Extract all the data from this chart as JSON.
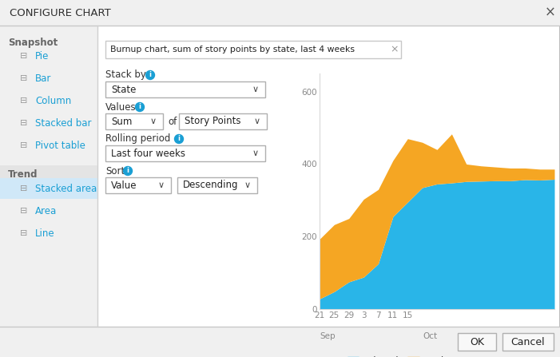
{
  "title": "CONFIGURE CHART",
  "bg_color": "#e8e8e8",
  "dialog_bg": "#ffffff",
  "sidebar_bg": "#f0f0f0",
  "sidebar_selected_bg": "#d0e8f8",
  "sidebar_items_snapshot": [
    "Pie",
    "Bar",
    "Column",
    "Stacked bar",
    "Pivot table"
  ],
  "sidebar_items_trend": [
    "Stacked area",
    "Area",
    "Line"
  ],
  "sidebar_selected": "Stacked area",
  "chart_title_text": "Burnup chart, sum of story points by state, last 4 weeks",
  "stack_by_value": "State",
  "values_agg": "Sum",
  "values_of": "of",
  "values_field": "Story Points",
  "rolling_period": "Last four weeks",
  "sort_by": "Value",
  "sort_order": "Descending",
  "blue_link_color": "#1a9fd4",
  "closed_color": "#29b5e8",
  "active_color": "#f5a623",
  "y_ticks": [
    0,
    200,
    400,
    600
  ],
  "x_labels": [
    "21",
    "25",
    "29",
    "3",
    "7",
    "11",
    "15"
  ],
  "closed_values": [
    28,
    48,
    75,
    88,
    125,
    255,
    295,
    335,
    345,
    348,
    352,
    353,
    354,
    354,
    357,
    356,
    358
  ],
  "active_values": [
    165,
    185,
    175,
    215,
    205,
    155,
    175,
    125,
    95,
    135,
    48,
    42,
    38,
    35,
    32,
    30,
    28
  ],
  "x_num": [
    0,
    4,
    8,
    12,
    16,
    20,
    24,
    28,
    32,
    36,
    40,
    44,
    48,
    52,
    56,
    60,
    64
  ]
}
